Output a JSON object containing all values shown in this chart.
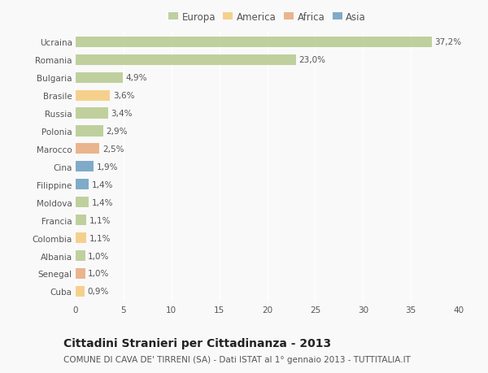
{
  "categories": [
    "Ucraina",
    "Romania",
    "Bulgaria",
    "Brasile",
    "Russia",
    "Polonia",
    "Marocco",
    "Cina",
    "Filippine",
    "Moldova",
    "Francia",
    "Colombia",
    "Albania",
    "Senegal",
    "Cuba"
  ],
  "values": [
    37.2,
    23.0,
    4.9,
    3.6,
    3.4,
    2.9,
    2.5,
    1.9,
    1.4,
    1.4,
    1.1,
    1.1,
    1.0,
    1.0,
    0.9
  ],
  "labels": [
    "37,2%",
    "23,0%",
    "4,9%",
    "3,6%",
    "3,4%",
    "2,9%",
    "2,5%",
    "1,9%",
    "1,4%",
    "1,4%",
    "1,1%",
    "1,1%",
    "1,0%",
    "1,0%",
    "0,9%"
  ],
  "colors": [
    "#b5c98e",
    "#b5c98e",
    "#b5c98e",
    "#f5c97a",
    "#b5c98e",
    "#b5c98e",
    "#e8a87c",
    "#6a9ec0",
    "#6a9ec0",
    "#b5c98e",
    "#b5c98e",
    "#f5c97a",
    "#b5c98e",
    "#e8a87c",
    "#f5c97a"
  ],
  "legend_labels": [
    "Europa",
    "America",
    "Africa",
    "Asia"
  ],
  "legend_colors": [
    "#b5c98e",
    "#f5c97a",
    "#e8a87c",
    "#6a9ec0"
  ],
  "title": "Cittadini Stranieri per Cittadinanza - 2013",
  "subtitle": "COMUNE DI CAVA DE' TIRRENI (SA) - Dati ISTAT al 1° gennaio 2013 - TUTTITALIA.IT",
  "xlim": [
    0,
    40
  ],
  "xticks": [
    0,
    5,
    10,
    15,
    20,
    25,
    30,
    35,
    40
  ],
  "bg_color": "#f9f9f9",
  "grid_color": "#ffffff",
  "bar_height": 0.6,
  "title_fontsize": 10,
  "subtitle_fontsize": 7.5,
  "label_fontsize": 7.5,
  "tick_fontsize": 7.5,
  "legend_fontsize": 8.5
}
